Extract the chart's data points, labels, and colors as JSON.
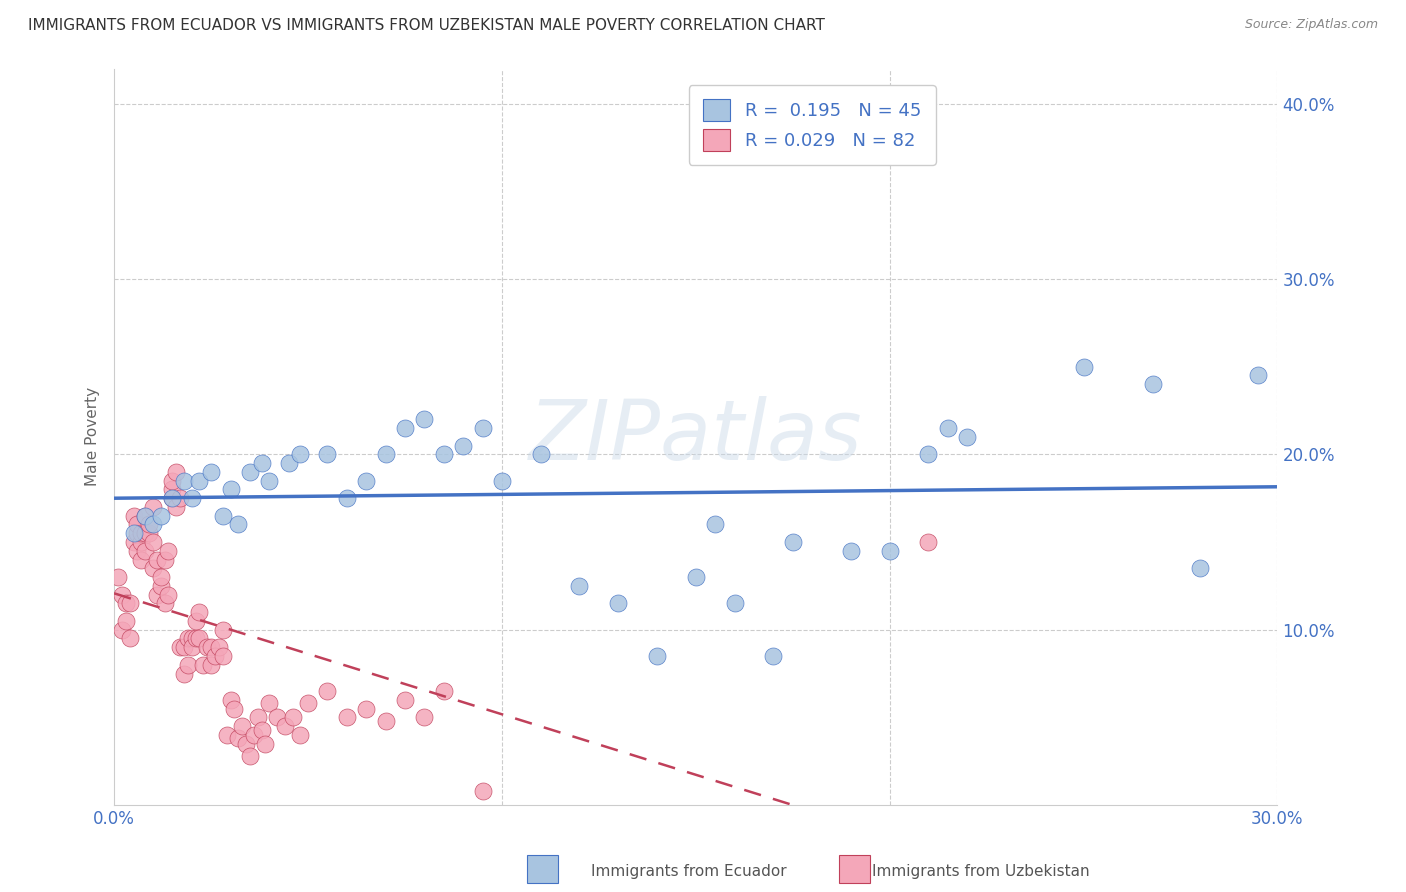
{
  "title": "IMMIGRANTS FROM ECUADOR VS IMMIGRANTS FROM UZBEKISTAN MALE POVERTY CORRELATION CHART",
  "source": "Source: ZipAtlas.com",
  "ylabel": "Male Poverty",
  "xlim": [
    0.0,
    0.3
  ],
  "ylim": [
    0.0,
    0.42
  ],
  "watermark": "ZIPatlas",
  "ecuador_R": 0.195,
  "ecuador_N": 45,
  "uzbekistan_R": 0.029,
  "uzbekistan_N": 82,
  "ecuador_color": "#a8c4e0",
  "ecuador_line_color": "#4472c4",
  "uzbekistan_color": "#f4a7b9",
  "uzbekistan_line_color": "#c0405a",
  "ecuador_scatter_x": [
    0.005,
    0.008,
    0.01,
    0.012,
    0.015,
    0.018,
    0.02,
    0.022,
    0.025,
    0.028,
    0.03,
    0.032,
    0.035,
    0.038,
    0.04,
    0.045,
    0.048,
    0.055,
    0.06,
    0.065,
    0.07,
    0.075,
    0.08,
    0.085,
    0.09,
    0.095,
    0.1,
    0.11,
    0.12,
    0.13,
    0.14,
    0.15,
    0.155,
    0.16,
    0.17,
    0.175,
    0.19,
    0.2,
    0.21,
    0.215,
    0.22,
    0.25,
    0.268,
    0.28,
    0.295
  ],
  "ecuador_scatter_y": [
    0.155,
    0.165,
    0.16,
    0.165,
    0.175,
    0.185,
    0.175,
    0.185,
    0.19,
    0.165,
    0.18,
    0.16,
    0.19,
    0.195,
    0.185,
    0.195,
    0.2,
    0.2,
    0.175,
    0.185,
    0.2,
    0.215,
    0.22,
    0.2,
    0.205,
    0.215,
    0.185,
    0.2,
    0.125,
    0.115,
    0.085,
    0.13,
    0.16,
    0.115,
    0.085,
    0.15,
    0.145,
    0.145,
    0.2,
    0.215,
    0.21,
    0.25,
    0.24,
    0.135,
    0.245
  ],
  "uzbekistan_scatter_x": [
    0.001,
    0.002,
    0.002,
    0.003,
    0.003,
    0.004,
    0.004,
    0.005,
    0.005,
    0.006,
    0.006,
    0.006,
    0.007,
    0.007,
    0.007,
    0.008,
    0.008,
    0.008,
    0.009,
    0.009,
    0.01,
    0.01,
    0.01,
    0.011,
    0.011,
    0.012,
    0.012,
    0.013,
    0.013,
    0.014,
    0.014,
    0.015,
    0.015,
    0.015,
    0.016,
    0.016,
    0.017,
    0.017,
    0.018,
    0.018,
    0.019,
    0.019,
    0.02,
    0.02,
    0.021,
    0.021,
    0.022,
    0.022,
    0.023,
    0.024,
    0.025,
    0.025,
    0.026,
    0.027,
    0.028,
    0.028,
    0.029,
    0.03,
    0.031,
    0.032,
    0.033,
    0.034,
    0.035,
    0.036,
    0.037,
    0.038,
    0.039,
    0.04,
    0.042,
    0.044,
    0.046,
    0.048,
    0.05,
    0.055,
    0.06,
    0.065,
    0.07,
    0.075,
    0.08,
    0.085,
    0.095,
    0.21
  ],
  "uzbekistan_scatter_y": [
    0.13,
    0.12,
    0.1,
    0.115,
    0.105,
    0.095,
    0.115,
    0.15,
    0.165,
    0.155,
    0.145,
    0.16,
    0.15,
    0.14,
    0.155,
    0.155,
    0.145,
    0.165,
    0.155,
    0.16,
    0.15,
    0.135,
    0.17,
    0.14,
    0.12,
    0.125,
    0.13,
    0.115,
    0.14,
    0.145,
    0.12,
    0.175,
    0.18,
    0.185,
    0.19,
    0.17,
    0.09,
    0.175,
    0.09,
    0.075,
    0.095,
    0.08,
    0.095,
    0.09,
    0.095,
    0.105,
    0.095,
    0.11,
    0.08,
    0.09,
    0.08,
    0.09,
    0.085,
    0.09,
    0.1,
    0.085,
    0.04,
    0.06,
    0.055,
    0.038,
    0.045,
    0.035,
    0.028,
    0.04,
    0.05,
    0.043,
    0.035,
    0.058,
    0.05,
    0.045,
    0.05,
    0.04,
    0.058,
    0.065,
    0.05,
    0.055,
    0.048,
    0.06,
    0.05,
    0.065,
    0.008,
    0.15
  ],
  "background_color": "#ffffff",
  "grid_color": "#cccccc",
  "title_fontsize": 11,
  "axis_label_color": "#4472c4"
}
